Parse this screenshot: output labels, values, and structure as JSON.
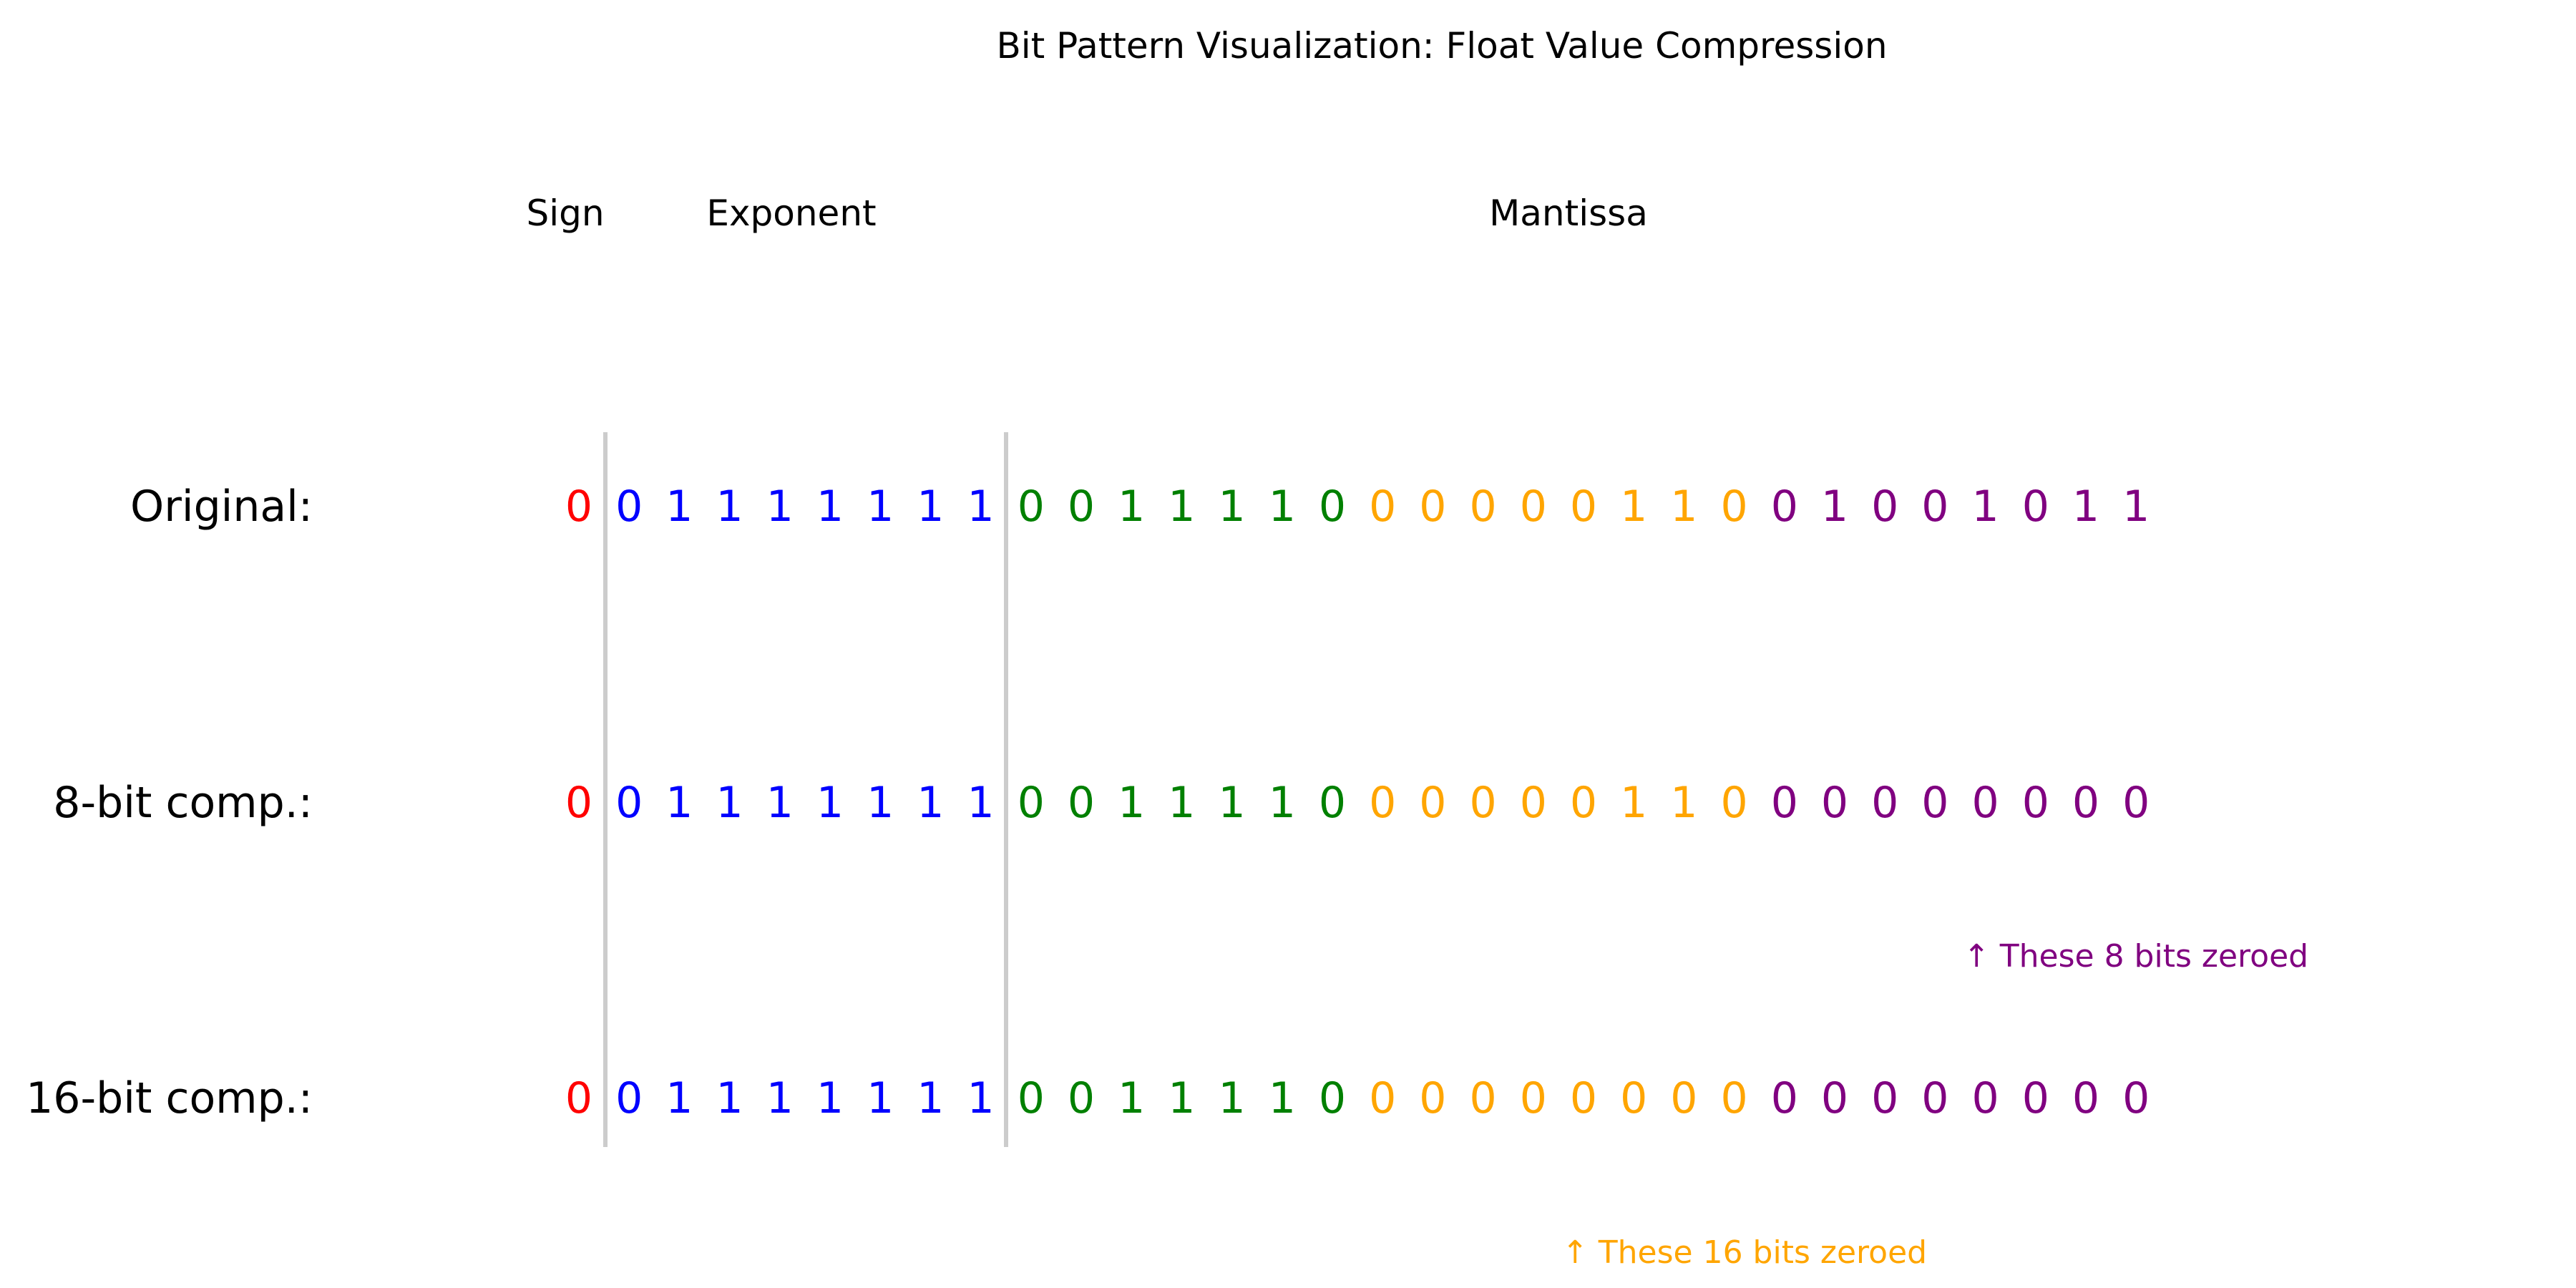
{
  "title": "Bit Pattern Visualization: Float Value Compression",
  "headers": {
    "sign": "Sign",
    "exponent": "Exponent",
    "mantissa": "Mantissa"
  },
  "rows": [
    {
      "label": "Original:",
      "bits": "0 0 1 1 1 1 1 1 1 0 0 1 1 1 1 0 0 0 0 0 0 1 1 0 0 1 0 0 1 0 1 1"
    },
    {
      "label": "8-bit comp.:",
      "bits": "0 0 1 1 1 1 1 1 1 0 0 1 1 1 1 0 0 0 0 0 0 1 1 0 0 0 0 0 0 0 0 0"
    },
    {
      "label": "16-bit comp.:",
      "bits": "0 0 1 1 1 1 1 1 1 0 0 1 1 1 1 0 0 0 0 0 0 0 0 0 0 0 0 0 0 0 0 0"
    }
  ],
  "notes": [
    {
      "text": "↑ These 8 bits zeroed",
      "color": "#800080"
    },
    {
      "text": "↑ These 16 bits zeroed",
      "color": "#ffa500"
    }
  ],
  "colors": {
    "sign": "#ff0000",
    "exponent": "#0000ff",
    "mantissa_group_1": "#008000",
    "mantissa_group_2": "#ffa500",
    "mantissa_group_3": "#800080",
    "divider": "#cccccc",
    "text": "#000000"
  }
}
